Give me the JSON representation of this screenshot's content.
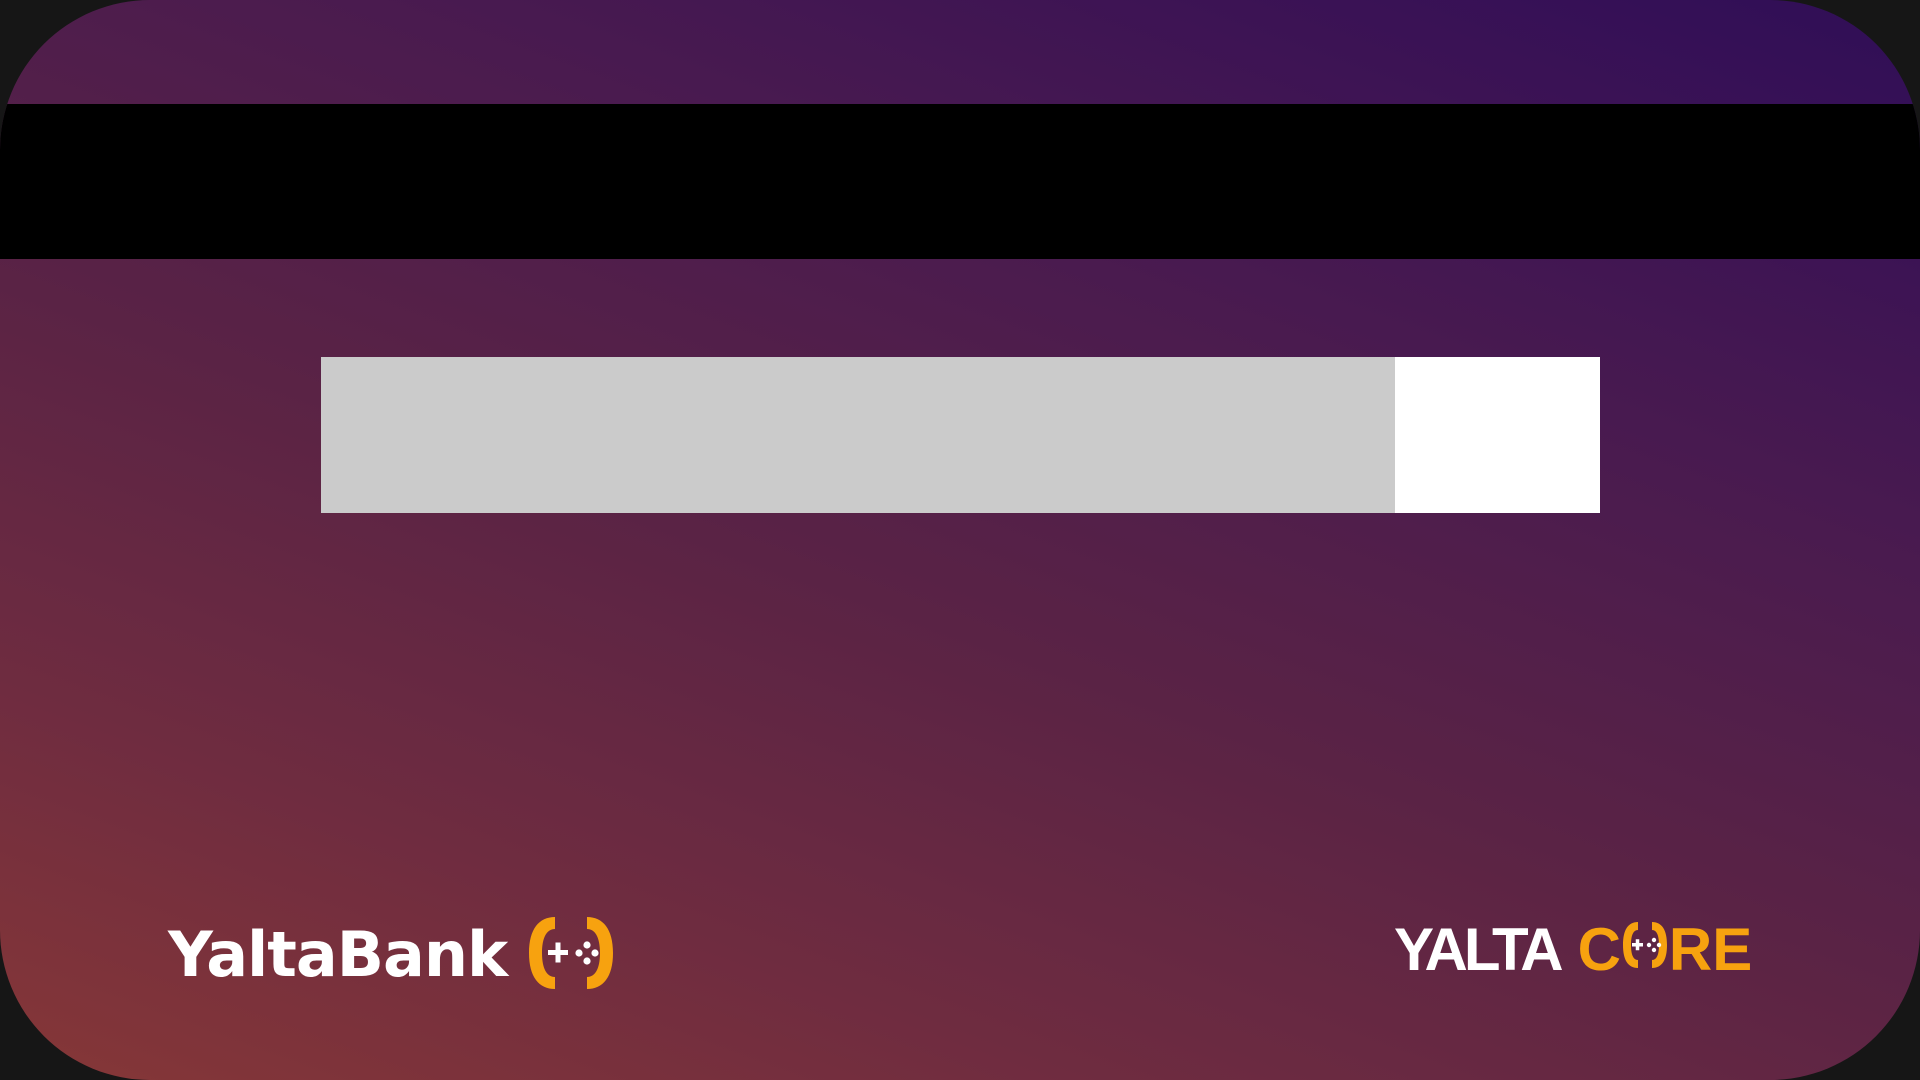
{
  "card": {
    "face": "back",
    "background_colors": [
      "#863737",
      "#5a2345",
      "#2f0e57"
    ],
    "stripe_color": "#000000",
    "signature_panel_color": "#cbcbcb",
    "cvv_panel_color": "#ffffff"
  },
  "bank_logo": {
    "wordmark": "YaltaBank",
    "icon": "gamepad-brackets-icon",
    "accent_color": "#f7a20f"
  },
  "core_logo": {
    "word_1": "YALTA",
    "word_2_before": "C",
    "word_2_after": "RE",
    "full_text": "YALTA CORE",
    "icon": "gamepad-o-icon",
    "accent_color": "#f7a20f"
  }
}
